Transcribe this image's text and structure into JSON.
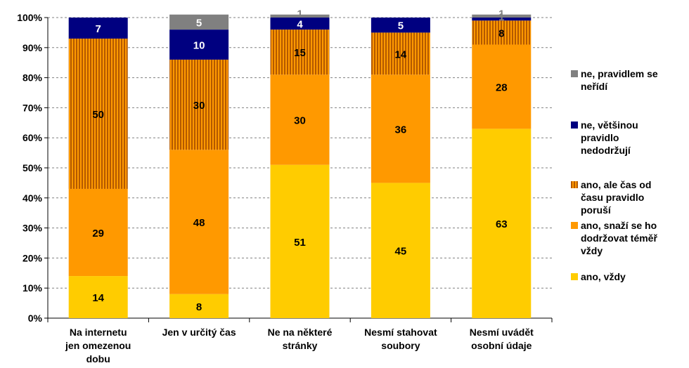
{
  "chart_data": {
    "type": "bar",
    "stacked": true,
    "percent_stacked": true,
    "categories": [
      [
        "Na internetu",
        "jen omezenou",
        "dobu"
      ],
      [
        "Jen v určitý čas"
      ],
      [
        "Ne na některé",
        "stránky"
      ],
      [
        "Nesmí stahovat",
        "soubory"
      ],
      [
        "Nesmí uvádět",
        "osobní údaje"
      ]
    ],
    "series": [
      {
        "name": "ano, vždy",
        "values": [
          14,
          8,
          51,
          45,
          63
        ],
        "color": "#FFCC00",
        "pattern": "solid",
        "label_color": "#000000"
      },
      {
        "name": "ano, snaží se ho dodržovat téměř vždy",
        "values": [
          29,
          48,
          30,
          36,
          28
        ],
        "color": "#FF9900",
        "pattern": "solid",
        "label_color": "#000000"
      },
      {
        "name": "ano, ale čas od času pravidlo poruší",
        "values": [
          50,
          30,
          15,
          14,
          8
        ],
        "color": "#CC6600",
        "pattern": "vertical-stripes",
        "stripe_color": "#FF9900",
        "label_color": "#000000"
      },
      {
        "name": "ne, většinou pravidlo nedodržují",
        "values": [
          7,
          10,
          4,
          5,
          1
        ],
        "color": "#000080",
        "pattern": "solid",
        "label_color": "#FFFFFF"
      },
      {
        "name": "ne, pravidlem se neřídí",
        "values": [
          0,
          5,
          1,
          0,
          1
        ],
        "color": "#808080",
        "pattern": "solid",
        "label_color": "#FFFFFF"
      }
    ],
    "data_labels": [
      [
        "14",
        "8",
        "51",
        "45",
        "63"
      ],
      [
        "29",
        "48",
        "30",
        "36",
        "28"
      ],
      [
        "50",
        "30",
        "15",
        "14",
        "8"
      ],
      [
        "7",
        "10",
        "4",
        "5",
        "1"
      ],
      [
        "",
        "5",
        "1",
        "",
        "1"
      ]
    ],
    "y_ticks": [
      "0%",
      "10%",
      "20%",
      "30%",
      "40%",
      "50%",
      "60%",
      "70%",
      "80%",
      "90%",
      "100%"
    ],
    "ylim": [
      0,
      100
    ],
    "grid": true,
    "legend": {
      "position": "right",
      "entries": [
        {
          "series": 4,
          "lines": [
            "ne, pravidlem se",
            "neřídí"
          ]
        },
        {
          "series": 3,
          "lines": [
            "ne, většinou",
            "pravidlo",
            "nedodržují"
          ]
        },
        {
          "series": 2,
          "lines": [
            "ano, ale čas od",
            "času pravidlo",
            "poruší"
          ]
        },
        {
          "series": 1,
          "lines": [
            "ano, snaží se ho",
            "dodržovat téměř",
            "vždy"
          ]
        },
        {
          "series": 0,
          "lines": [
            "ano, vždy"
          ]
        }
      ]
    },
    "title": "",
    "xlabel": "",
    "ylabel": ""
  }
}
